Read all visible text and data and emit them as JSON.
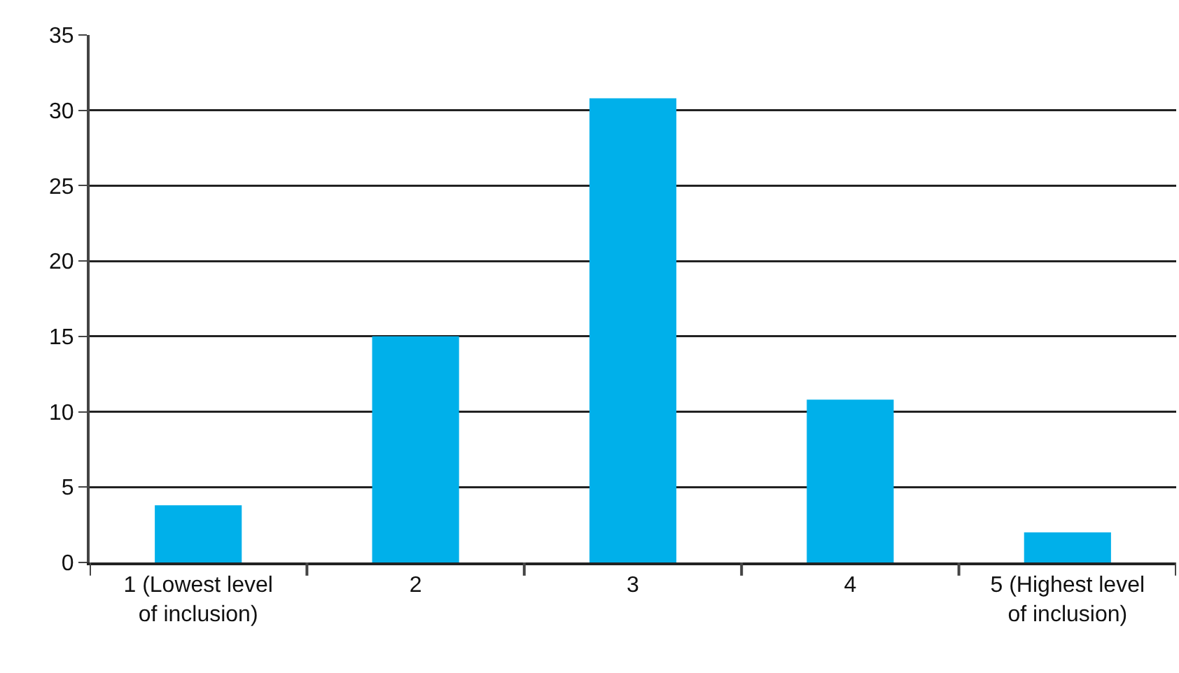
{
  "chart_data": {
    "type": "bar",
    "categories": [
      "1 (Lowest level of inclusion)",
      "2",
      "3",
      "4",
      "5 (Highest level of inclusion)"
    ],
    "values": [
      3.8,
      15,
      30.8,
      10.8,
      2
    ],
    "color": "#00b0ea",
    "ylim": [
      0,
      35
    ],
    "yticks": [
      0,
      5,
      10,
      15,
      20,
      25,
      30,
      35
    ],
    "grid": "y",
    "legend": false
  }
}
